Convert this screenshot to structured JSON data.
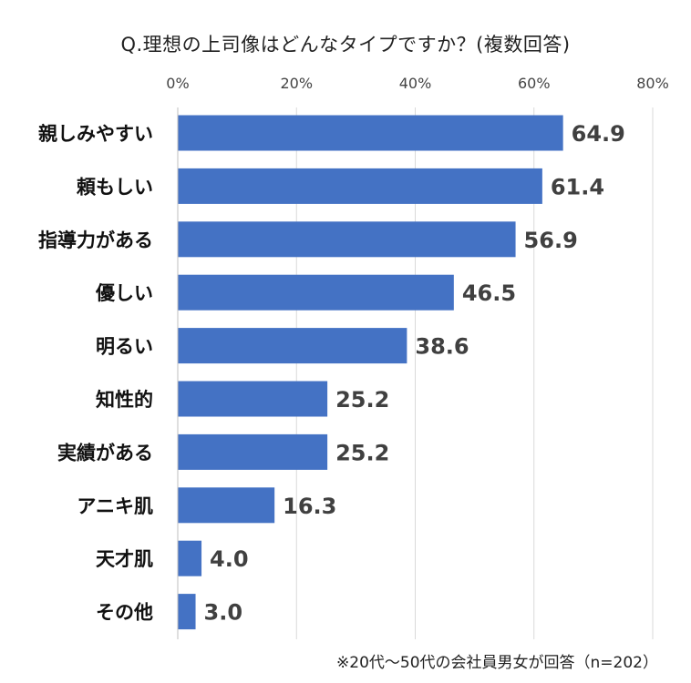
{
  "chart_data": {
    "type": "bar",
    "orientation": "horizontal",
    "title": "Q.理想の上司像はどんなタイプですか？(複数回答)",
    "categories": [
      "親しみやすい",
      "頼もしい",
      "指導力がある",
      "優しい",
      "明るい",
      "知性的",
      "実績がある",
      "アニキ肌",
      "天才肌",
      "その他"
    ],
    "values": [
      64.9,
      61.4,
      56.9,
      46.5,
      38.6,
      25.2,
      25.2,
      16.3,
      4.0,
      3.0
    ],
    "value_labels": [
      "64.9",
      "61.4",
      "56.9",
      "46.5",
      "38.6",
      "25.2",
      "25.2",
      "16.3",
      "4.0",
      "3.0"
    ],
    "xlim": [
      0,
      80
    ],
    "xticks": [
      "0%",
      "20%",
      "40%",
      "60%",
      "80%"
    ],
    "xtick_values": [
      0,
      20,
      40,
      60,
      80
    ],
    "xlabel": "",
    "ylabel": "",
    "grid": true,
    "bar_color": "#4472C4",
    "footnote": "※20代～50代の会社員男女が回答（n=202）"
  }
}
